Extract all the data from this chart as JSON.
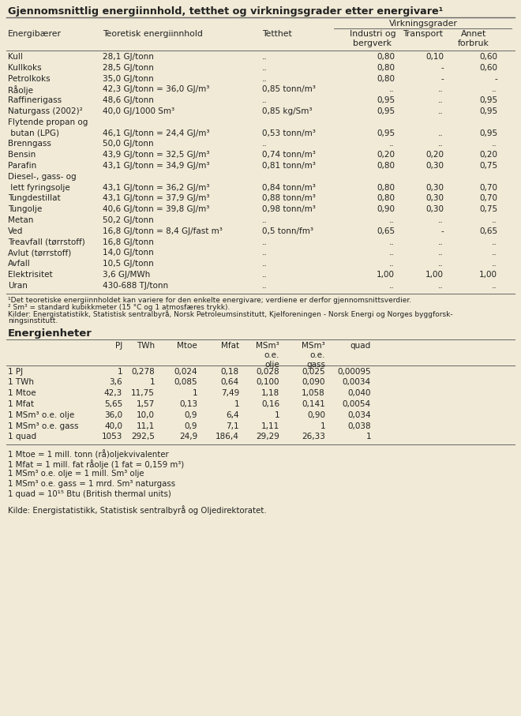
{
  "bg_color": "#f0ead6",
  "title1": "Gjennomsnittlig energiinnhold, tetthet og virkningsgrader etter energivare¹",
  "virkningsgrader_label": "Virkningsgrader",
  "table1_rows": [
    [
      "Kull",
      "28,1 GJ/tonn",
      "..",
      "0,80",
      "0,10",
      "0,60"
    ],
    [
      "Kullkoks",
      "28,5 GJ/tonn",
      "..",
      "0,80",
      "-",
      "0,60"
    ],
    [
      "Petrolkoks",
      "35,0 GJ/tonn",
      "..",
      "0,80",
      "-",
      "-"
    ],
    [
      "Råolje",
      "42,3 GJ/tonn = 36,0 GJ/m³",
      "0,85 tonn/m³",
      "..",
      "..",
      ".."
    ],
    [
      "Raffinerigass",
      "48,6 GJ/tonn",
      "..",
      "0,95",
      "..",
      "0,95"
    ],
    [
      "Naturgass (2002)²",
      "40,0 GJ/1000 Sm³",
      "0,85 kg/Sm³",
      "0,95",
      "..",
      "0,95"
    ],
    [
      "Flytende propan og",
      "",
      "",
      "",
      "",
      ""
    ],
    [
      " butan (LPG)",
      "46,1 GJ/tonn = 24,4 GJ/m³",
      "0,53 tonn/m³",
      "0,95",
      "..",
      "0,95"
    ],
    [
      "Brenngass",
      "50,0 GJ/tonn",
      "..",
      "..",
      "..",
      ".."
    ],
    [
      "Bensin",
      "43,9 GJ/tonn = 32,5 GJ/m³",
      "0,74 tonn/m³",
      "0,20",
      "0,20",
      "0,20"
    ],
    [
      "Parafin",
      "43,1 GJ/tonn = 34,9 GJ/m³",
      "0,81 tonn/m³",
      "0,80",
      "0,30",
      "0,75"
    ],
    [
      "Diesel-, gass- og",
      "",
      "",
      "",
      "",
      ""
    ],
    [
      " lett fyringsolje",
      "43,1 GJ/tonn = 36,2 GJ/m³",
      "0,84 tonn/m³",
      "0,80",
      "0,30",
      "0,70"
    ],
    [
      "Tungdestillat",
      "43,1 GJ/tonn = 37,9 GJ/m³",
      "0,88 tonn/m³",
      "0,80",
      "0,30",
      "0,70"
    ],
    [
      "Tungolje",
      "40,6 GJ/tonn = 39,8 GJ/m³",
      "0,98 tonn/m³",
      "0,90",
      "0,30",
      "0,75"
    ],
    [
      "Metan",
      "50,2 GJ/tonn",
      "..",
      "..",
      "..",
      ".."
    ],
    [
      "Ved",
      "16,8 GJ/tonn = 8,4 GJ/fast m³",
      "0,5 tonn/fm³",
      "0,65",
      "-",
      "0,65"
    ],
    [
      "Treavfall (tørrstoff)",
      "16,8 GJ/tonn",
      "..",
      "..",
      "..",
      ".."
    ],
    [
      "Avlut (tørrstoff)",
      "14,0 GJ/tonn",
      "..",
      "..",
      "..",
      ".."
    ],
    [
      "Avfall",
      "10,5 GJ/tonn",
      "..",
      "..",
      "..",
      ".."
    ],
    [
      "Elektrisitet",
      "3,6 GJ/MWh",
      "..",
      "1,00",
      "1,00",
      "1,00"
    ],
    [
      "Uran",
      "430-688 TJ/tonn",
      "..",
      "..",
      "..",
      ".."
    ]
  ],
  "footnote1": "¹Det teoretiske energiinnholdet kan variere for den enkelte energivare; verdiene er derfor gjennomsnittsverdier.",
  "footnote2": "² Sm³ = standard kubikkmeter (15 °C og 1 atmosfæres trykk).",
  "footnote3a": "Kilder: Energistatistikk, Statistisk sentralbyrå, Norsk Petroleumsinstitutt, Kjelforeningen - Norsk Energi og Norges byggforsk-",
  "footnote3b": "ningsinstitutt.",
  "title2": "Energienheter",
  "table2_rows": [
    [
      "1 PJ",
      "1",
      "0,278",
      "0,024",
      "0,18",
      "0,028",
      "0,025",
      "0,00095"
    ],
    [
      "1 TWh",
      "3,6",
      "1",
      "0,085",
      "0,64",
      "0,100",
      "0,090",
      "0,0034"
    ],
    [
      "1 Mtoe",
      "42,3",
      "11,75",
      "1",
      "7,49",
      "1,18",
      "1,058",
      "0,040"
    ],
    [
      "1 Mfat",
      "5,65",
      "1,57",
      "0,13",
      "1",
      "0,16",
      "0,141",
      "0,0054"
    ],
    [
      "1 MSm³ o.e. olje",
      "36,0",
      "10,0",
      "0,9",
      "6,4",
      "1",
      "0,90",
      "0,034"
    ],
    [
      "1 MSm³ o.e. gass",
      "40,0",
      "11,1",
      "0,9",
      "7,1",
      "1,11",
      "1",
      "0,038"
    ],
    [
      "1 quad",
      "1053",
      "292,5",
      "24,9",
      "186,4",
      "29,29",
      "26,33",
      "1"
    ]
  ],
  "footnote4": "1 Mtoe = 1 mill. tonn (rå)oljekvivalenter",
  "footnote5": "1 Mfat = 1 mill. fat råolje (1 fat = 0,159 m³)",
  "footnote6": "1 MSm³ o.e. olje = 1 mill. Sm³ olje",
  "footnote7": "1 MSm³ o.e. gass = 1 mrd. Sm³ naturgass",
  "footnote8": "1 quad = 10¹⁵ Btu (British thermal units)",
  "footnote9": "Kilde: Energistatistikk, Statistisk sentralbyrå og Oljedirektoratet."
}
